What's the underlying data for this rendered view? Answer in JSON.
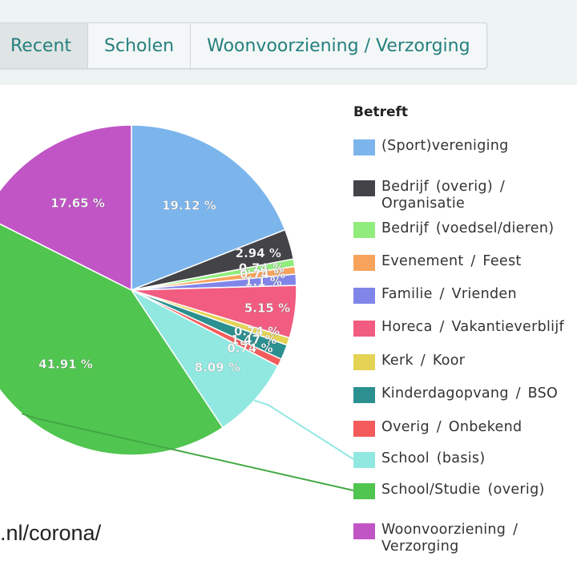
{
  "tabs": [
    {
      "label": "Recent",
      "active": true
    },
    {
      "label": "Scholen",
      "active": false
    },
    {
      "label": "Woonvoorziening / Verzorging",
      "active": false
    }
  ],
  "footer_url": ".nl/corona/",
  "chart_data": {
    "type": "pie",
    "legend_title": "Betreft",
    "legend_position": "right",
    "unit": "%",
    "slices": [
      {
        "name": "(Sport)vereniging",
        "value": 19.12,
        "label": "19.12 %",
        "color": "#7cb5ec"
      },
      {
        "name": "Bedrijf (overig) / Organisatie",
        "value": 2.94,
        "label": "2.94 %",
        "color": "#434348"
      },
      {
        "name": "Bedrijf (voedsel/dieren)",
        "value": 0.74,
        "label": "0.74 %",
        "color": "#90ed7d"
      },
      {
        "name": "Evenement / Feest",
        "value": 0.74,
        "label": "0.74 %",
        "color": "#f7a35c"
      },
      {
        "name": "Familie / Vrienden",
        "value": 1.1,
        "label": "1.1 %",
        "color": "#8085e9"
      },
      {
        "name": "Horeca / Vakantieverblijf",
        "value": 5.15,
        "label": "5.15 %",
        "color": "#f15c80"
      },
      {
        "name": "Kerk / Koor",
        "value": 0.74,
        "label": "0.74 %",
        "color": "#e4d354"
      },
      {
        "name": "Kinderdagopvang / BSO",
        "value": 1.47,
        "label": "1.47 %",
        "color": "#2b908f"
      },
      {
        "name": "Overig / Onbekend",
        "value": 0.74,
        "label": "0.74 %",
        "color": "#f45b5b"
      },
      {
        "name": "School (basis)",
        "value": 8.09,
        "label": "8.09 %",
        "color": "#91e8e1"
      },
      {
        "name": "School/Studie (overig)",
        "value": 41.91,
        "label": "41.91 %",
        "color": "#50c550"
      },
      {
        "name": "Woonvoorziening / Verzorging",
        "value": 17.65,
        "label": "17.65 %",
        "color": "#c155c6"
      }
    ]
  }
}
